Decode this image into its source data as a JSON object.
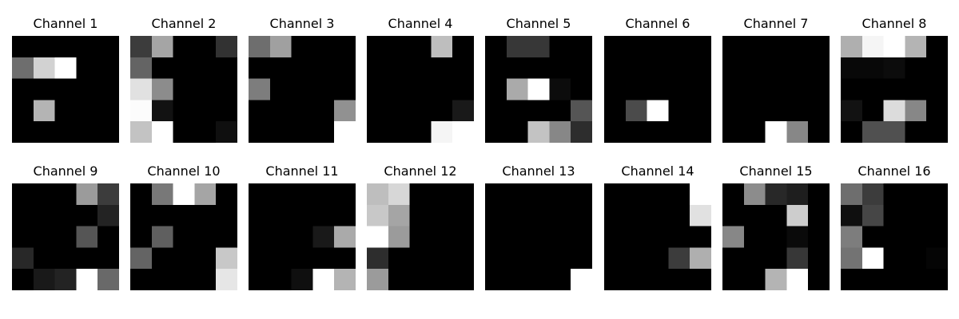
{
  "chart_data": [
    {
      "type": "heatmap",
      "title": "Channel 1",
      "colormap": "gray",
      "values": [
        [
          0,
          0,
          0,
          0,
          0
        ],
        [
          110,
          210,
          255,
          0,
          0
        ],
        [
          0,
          0,
          0,
          0,
          0
        ],
        [
          0,
          180,
          0,
          0,
          0
        ],
        [
          0,
          0,
          0,
          0,
          0
        ]
      ]
    },
    {
      "type": "heatmap",
      "title": "Channel 2",
      "colormap": "gray",
      "values": [
        [
          60,
          165,
          0,
          0,
          50
        ],
        [
          100,
          0,
          0,
          0,
          0
        ],
        [
          225,
          140,
          0,
          0,
          0
        ],
        [
          252,
          18,
          0,
          0,
          0
        ],
        [
          195,
          255,
          0,
          0,
          15
        ]
      ]
    },
    {
      "type": "heatmap",
      "title": "Channel 3",
      "colormap": "gray",
      "values": [
        [
          110,
          160,
          0,
          0,
          0
        ],
        [
          0,
          0,
          0,
          0,
          0
        ],
        [
          125,
          0,
          0,
          0,
          0
        ],
        [
          0,
          0,
          0,
          0,
          145
        ],
        [
          0,
          0,
          0,
          0,
          255
        ]
      ]
    },
    {
      "type": "heatmap",
      "title": "Channel 4",
      "colormap": "gray",
      "values": [
        [
          0,
          0,
          0,
          190,
          0
        ],
        [
          0,
          0,
          0,
          0,
          0
        ],
        [
          0,
          0,
          0,
          0,
          0
        ],
        [
          0,
          0,
          0,
          0,
          25
        ],
        [
          0,
          0,
          0,
          245,
          255
        ]
      ]
    },
    {
      "type": "heatmap",
      "title": "Channel 5",
      "colormap": "gray",
      "values": [
        [
          0,
          55,
          55,
          0,
          0
        ],
        [
          0,
          0,
          0,
          0,
          0
        ],
        [
          0,
          170,
          255,
          12,
          0
        ],
        [
          0,
          0,
          0,
          0,
          85
        ],
        [
          0,
          0,
          195,
          135,
          45
        ]
      ]
    },
    {
      "type": "heatmap",
      "title": "Channel 6",
      "colormap": "gray",
      "values": [
        [
          0,
          0,
          0,
          0,
          0
        ],
        [
          0,
          0,
          0,
          0,
          0
        ],
        [
          0,
          0,
          0,
          0,
          0
        ],
        [
          0,
          75,
          255,
          0,
          0
        ],
        [
          0,
          0,
          0,
          0,
          0
        ]
      ]
    },
    {
      "type": "heatmap",
      "title": "Channel 7",
      "colormap": "gray",
      "values": [
        [
          0,
          0,
          0,
          0,
          0
        ],
        [
          0,
          0,
          0,
          0,
          0
        ],
        [
          0,
          0,
          0,
          0,
          0
        ],
        [
          0,
          0,
          0,
          0,
          0
        ],
        [
          0,
          0,
          255,
          135,
          0
        ]
      ]
    },
    {
      "type": "heatmap",
      "title": "Channel 8",
      "colormap": "gray",
      "values": [
        [
          175,
          245,
          255,
          180,
          0
        ],
        [
          8,
          8,
          12,
          0,
          0
        ],
        [
          0,
          0,
          0,
          0,
          0
        ],
        [
          18,
          0,
          220,
          135,
          0
        ],
        [
          0,
          80,
          80,
          0,
          0
        ]
      ]
    },
    {
      "type": "heatmap",
      "title": "Channel 9",
      "colormap": "gray",
      "values": [
        [
          0,
          0,
          0,
          155,
          60
        ],
        [
          0,
          0,
          0,
          0,
          35
        ],
        [
          0,
          0,
          0,
          85,
          0
        ],
        [
          40,
          0,
          0,
          0,
          0
        ],
        [
          0,
          25,
          35,
          255,
          105
        ]
      ]
    },
    {
      "type": "heatmap",
      "title": "Channel 10",
      "colormap": "gray",
      "values": [
        [
          0,
          120,
          255,
          165,
          0
        ],
        [
          0,
          0,
          0,
          0,
          0
        ],
        [
          0,
          95,
          0,
          0,
          0
        ],
        [
          100,
          0,
          0,
          0,
          200
        ],
        [
          0,
          0,
          0,
          0,
          230
        ]
      ]
    },
    {
      "type": "heatmap",
      "title": "Channel 11",
      "colormap": "gray",
      "values": [
        [
          0,
          0,
          0,
          0,
          0
        ],
        [
          0,
          0,
          0,
          0,
          0
        ],
        [
          0,
          0,
          0,
          25,
          170
        ],
        [
          0,
          0,
          0,
          0,
          0
        ],
        [
          0,
          0,
          15,
          255,
          180
        ]
      ]
    },
    {
      "type": "heatmap",
      "title": "Channel 12",
      "colormap": "gray",
      "values": [
        [
          190,
          215,
          0,
          0,
          0
        ],
        [
          200,
          165,
          0,
          0,
          0
        ],
        [
          255,
          155,
          0,
          0,
          0
        ],
        [
          45,
          0,
          0,
          0,
          0
        ],
        [
          155,
          0,
          0,
          0,
          0
        ]
      ]
    },
    {
      "type": "heatmap",
      "title": "Channel 13",
      "colormap": "gray",
      "values": [
        [
          0,
          0,
          0,
          0,
          0
        ],
        [
          0,
          0,
          0,
          0,
          0
        ],
        [
          0,
          0,
          0,
          0,
          0
        ],
        [
          0,
          0,
          0,
          0,
          0
        ],
        [
          0,
          0,
          0,
          0,
          255
        ]
      ]
    },
    {
      "type": "heatmap",
      "title": "Channel 14",
      "colormap": "gray",
      "values": [
        [
          0,
          0,
          0,
          0,
          255
        ],
        [
          0,
          0,
          0,
          0,
          225
        ],
        [
          0,
          0,
          0,
          0,
          0
        ],
        [
          0,
          0,
          0,
          60,
          175
        ],
        [
          0,
          0,
          0,
          0,
          0
        ]
      ]
    },
    {
      "type": "heatmap",
      "title": "Channel 15",
      "colormap": "gray",
      "values": [
        [
          0,
          140,
          40,
          30,
          0
        ],
        [
          0,
          0,
          0,
          205,
          0
        ],
        [
          135,
          0,
          0,
          10,
          0
        ],
        [
          0,
          0,
          0,
          55,
          0
        ],
        [
          0,
          0,
          180,
          255,
          0
        ]
      ]
    },
    {
      "type": "heatmap",
      "title": "Channel 16",
      "colormap": "gray",
      "values": [
        [
          110,
          60,
          0,
          0,
          0
        ],
        [
          15,
          70,
          0,
          0,
          0
        ],
        [
          125,
          0,
          0,
          0,
          0
        ],
        [
          115,
          255,
          0,
          0,
          5
        ],
        [
          0,
          0,
          0,
          0,
          0
        ]
      ]
    }
  ]
}
